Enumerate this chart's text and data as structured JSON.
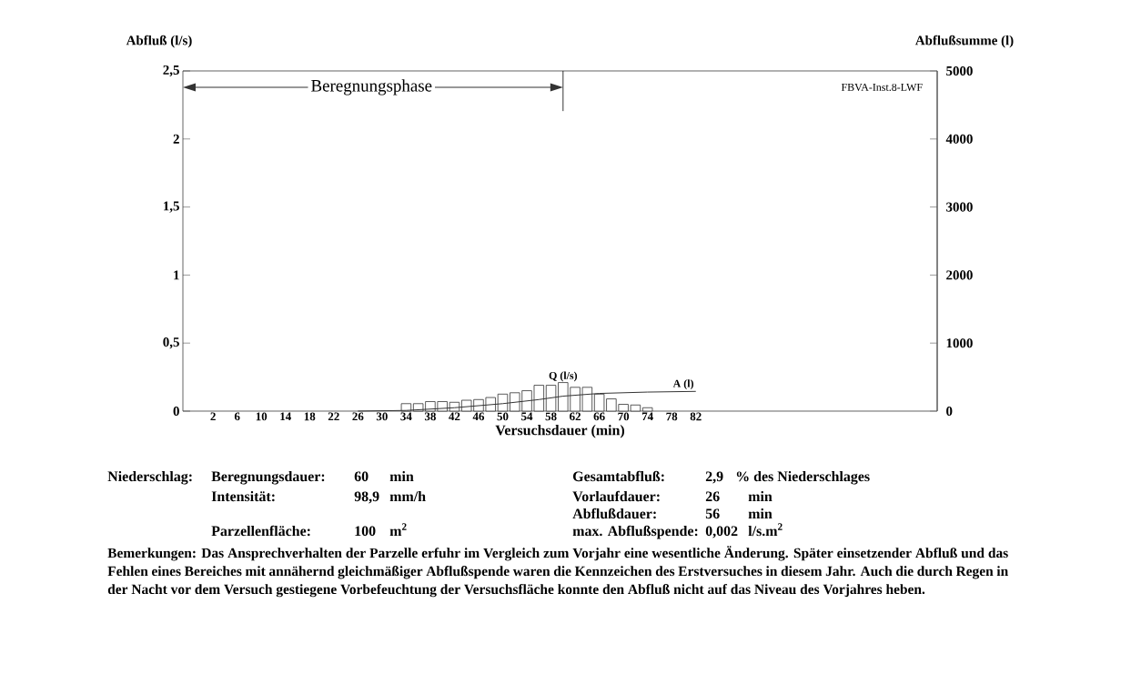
{
  "chart_data": {
    "type": "bar",
    "xlabel": "Versuchsdauer (min)",
    "ylabel": "Abfluß (l/s)",
    "y2label": "Abflußsumme (l)",
    "xlim": [
      -3,
      122
    ],
    "xticks": [
      2,
      6,
      10,
      14,
      18,
      22,
      26,
      30,
      34,
      38,
      42,
      46,
      50,
      54,
      58,
      62,
      66,
      70,
      74,
      78,
      82
    ],
    "ylim": [
      0,
      2.5
    ],
    "yticks": [
      0,
      {
        "value": 0.5,
        "label": "0,5"
      },
      1,
      {
        "value": 1.5,
        "label": "1,5"
      },
      2,
      {
        "value": 2.5,
        "label": "2,5"
      }
    ],
    "y2lim": [
      0,
      5000
    ],
    "y2ticks": [
      0,
      1000,
      2000,
      3000,
      4000,
      5000
    ],
    "series": [
      {
        "name": "Q (l/s)",
        "color": "#ffffff",
        "x": [
          34,
          36,
          38,
          40,
          42,
          44,
          46,
          48,
          50,
          52,
          54,
          56,
          58,
          60,
          62,
          64,
          66,
          68,
          70,
          72,
          74
        ],
        "values": [
          0.055,
          0.055,
          0.07,
          0.07,
          0.065,
          0.08,
          0.085,
          0.1,
          0.125,
          0.135,
          0.15,
          0.19,
          0.19,
          0.21,
          0.175,
          0.175,
          0.125,
          0.09,
          0.05,
          0.045,
          0.025
        ]
      },
      {
        "name": "A (l)",
        "type": "line",
        "axis": "y2",
        "color": "#333333",
        "x": [
          26,
          34,
          42,
          50,
          56,
          60,
          66,
          74,
          82
        ],
        "values": [
          0,
          10,
          50,
          110,
          170,
          220,
          260,
          280,
          290
        ]
      }
    ],
    "ref_lines": [
      {
        "axis": "x",
        "value": 60
      }
    ],
    "legend": false,
    "grid": false,
    "annotations": [
      "FBVA-Inst.8-LWF",
      "Beregnungsphase",
      "Niederschlag:",
      "Beregnungsdauer:",
      "60",
      "min",
      "Gesamtabfluß:",
      "2,9",
      "% des Niederschlages",
      "Intensität:",
      "98,9",
      "mm/h",
      "Vorlaufdauer:",
      "26",
      "min",
      "Abflußdauer:",
      "56",
      "min",
      "Parzellenfläche:",
      "100",
      "m$^{2}$",
      "max. Abflußspende:",
      "0,002",
      "l/s.m$^{2}$",
      "**Bemerkungen:** Das Ansprechverhalten der Parzelle erfuhr im Vergleich zum Vorjahr eine wesentliche Änderung. Später einsetzender Abfluß und das Fehlen eines Bereiches mit annähernd gleichmäßiger Abflußspende waren die Kennzeichen des Erstversuches in diesem Jahr. Auch die durch Regen in der Nacht vor dem Versuch gestiegene Vorbefeuchtung der Versuchsfläche konnte den Abfluß nicht auf das Niveau des Vorjahres heben."
    ]
  }
}
